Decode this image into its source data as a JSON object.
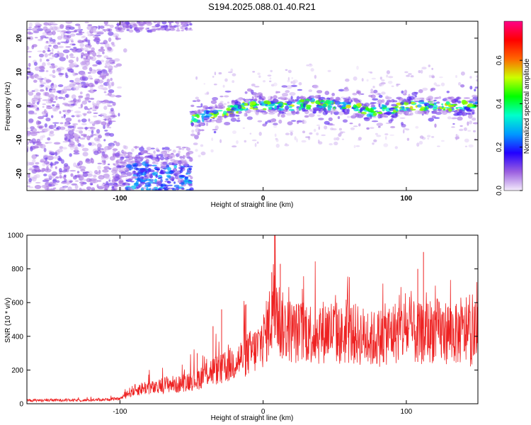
{
  "title": "S194.2025.088.01.40.R21",
  "chart_data": [
    {
      "type": "heatmap",
      "xlabel": "Height of straight line (km)",
      "ylabel": "Frequency (Hz)",
      "xlim": [
        -165,
        150
      ],
      "ylim": [
        -25,
        25
      ],
      "xticks": [
        -100,
        0,
        100
      ],
      "yticks": [
        -20,
        -10,
        0,
        10,
        20
      ],
      "colorbar": {
        "label": "Normalized spectral amplitude",
        "range": [
          0.0,
          0.78
        ],
        "ticks": [
          "0.0",
          "0.2",
          "0.4",
          "0.6"
        ],
        "colormap": [
          "#f4ecfb",
          "#9b5fe0",
          "#2200ff",
          "#0099ff",
          "#00ffcc",
          "#00ff00",
          "#ccff00",
          "#ff6600",
          "#ff0000",
          "#ff0088"
        ]
      },
      "signal_track": {
        "x": [
          -50,
          -40,
          -30,
          -20,
          -10,
          0,
          10,
          20,
          30,
          40,
          50,
          60,
          70,
          75,
          80,
          90,
          100,
          110,
          120,
          130,
          140,
          150
        ],
        "freq": [
          -4,
          -3,
          -2,
          -1,
          0,
          0,
          0,
          0,
          0.5,
          0.5,
          0,
          0,
          -1,
          -2,
          -1,
          -1,
          0,
          0,
          0,
          0,
          0,
          0
        ]
      },
      "regions": [
        {
          "x": [
            -165,
            -105
          ],
          "freq": [
            -25,
            25
          ],
          "intensity": "low"
        },
        {
          "x": [
            -105,
            -50
          ],
          "freq": [
            -25,
            -15
          ],
          "intensity": "medium"
        },
        {
          "x": [
            -50,
            150
          ],
          "freq": [
            -6,
            6
          ],
          "intensity": "high"
        }
      ]
    },
    {
      "type": "line",
      "xlabel": "Height of straight line (km)",
      "ylabel": "SNR (10 * v/v)",
      "xlim": [
        -165,
        150
      ],
      "ylim": [
        0,
        1000
      ],
      "xticks": [
        -100,
        0,
        100
      ],
      "yticks": [
        0,
        200,
        400,
        600,
        800,
        1000
      ],
      "color": "#ee2222",
      "series": [
        {
          "x": [
            -165,
            -150,
            -140,
            -130,
            -120,
            -110,
            -100,
            -95,
            -90,
            -85,
            -80,
            -75,
            -70,
            -65,
            -60,
            -55,
            -50,
            -45,
            -40,
            -35,
            -30,
            -25,
            -20,
            -15,
            -10,
            -5,
            0,
            2,
            5,
            8,
            10,
            12,
            15,
            20,
            25,
            30,
            35,
            40,
            45,
            50,
            55,
            60,
            65,
            70,
            75,
            80,
            85,
            90,
            95,
            100,
            105,
            110,
            115,
            120,
            125,
            130,
            135,
            140,
            145,
            150
          ],
          "y": [
            20,
            20,
            22,
            20,
            22,
            25,
            30,
            60,
            80,
            90,
            100,
            90,
            110,
            120,
            110,
            130,
            140,
            150,
            180,
            200,
            200,
            220,
            250,
            270,
            300,
            320,
            380,
            420,
            500,
            650,
            560,
            470,
            450,
            430,
            420,
            440,
            410,
            420,
            440,
            430,
            400,
            420,
            410,
            400,
            380,
            390,
            410,
            420,
            430,
            440,
            420,
            410,
            430,
            440,
            420,
            430,
            410,
            420,
            400,
            410
          ]
        }
      ],
      "spikes": [
        {
          "x": 8,
          "y": 1000
        },
        {
          "x": 12,
          "y": 830
        },
        {
          "x": 6,
          "y": 780
        },
        {
          "x": 112,
          "y": 900
        },
        {
          "x": 108,
          "y": 800
        },
        {
          "x": -29,
          "y": 560
        },
        {
          "x": -35,
          "y": 460
        },
        {
          "x": -46,
          "y": 300
        },
        {
          "x": -12,
          "y": 590
        }
      ]
    }
  ]
}
